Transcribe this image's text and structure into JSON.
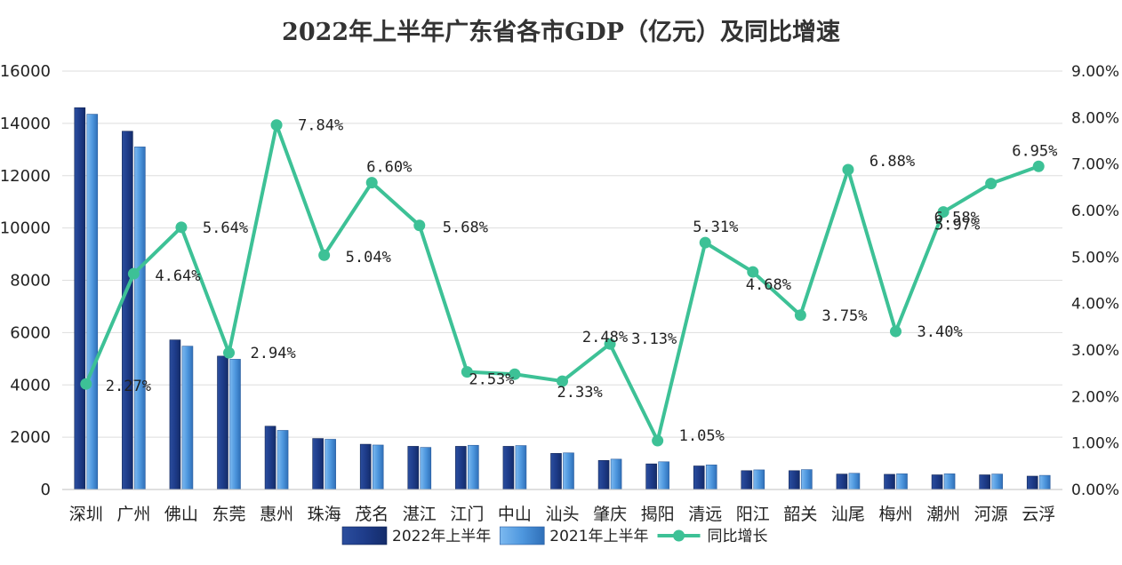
{
  "chart_data": {
    "type": "bar",
    "title": "2022年上半年广东省各市GDP（亿元）及同比增速",
    "categories": [
      "深圳",
      "广州",
      "佛山",
      "东莞",
      "惠州",
      "珠海",
      "茂名",
      "湛江",
      "江门",
      "中山",
      "汕头",
      "肇庆",
      "揭阳",
      "清远",
      "阳江",
      "韶关",
      "汕尾",
      "梅州",
      "潮州",
      "河源",
      "云浮"
    ],
    "series": [
      {
        "name": "2022年上半年",
        "kind": "bar",
        "axis": "left",
        "color": "#1F3F8F",
        "values": [
          14600,
          13700,
          5720,
          5100,
          2420,
          1950,
          1730,
          1650,
          1650,
          1650,
          1380,
          1110,
          980,
          900,
          720,
          720,
          590,
          580,
          560,
          560,
          510
        ]
      },
      {
        "name": "2021年上半年",
        "kind": "bar",
        "axis": "left",
        "color": "#5BA3E6",
        "values": [
          14350,
          13100,
          5480,
          4980,
          2260,
          1920,
          1700,
          1610,
          1690,
          1680,
          1400,
          1160,
          1060,
          940,
          750,
          760,
          620,
          600,
          600,
          590,
          540
        ]
      },
      {
        "name": "同比增长",
        "kind": "line",
        "axis": "right",
        "color": "#3DC196",
        "values": [
          2.27,
          4.64,
          5.64,
          2.94,
          7.84,
          5.04,
          6.6,
          5.68,
          2.53,
          2.48,
          2.33,
          3.13,
          1.05,
          5.31,
          4.68,
          3.75,
          6.88,
          3.4,
          5.97,
          6.58,
          6.95
        ],
        "labels": [
          "2.27%",
          "4.64%",
          "5.64%",
          "2.94%",
          "7.84%",
          "5.04%",
          "6.60%",
          "5.68%",
          "2.53%",
          "2.48%",
          "2.33%",
          "3.13%",
          "1.05%",
          "5.31%",
          "4.68%",
          "3.75%",
          "6.88%",
          "3.40%",
          "5.97%",
          "6.58%",
          "6.95%"
        ]
      }
    ],
    "y_left": {
      "min": 0,
      "max": 16000,
      "ticks": [
        "0",
        "2000",
        "4000",
        "6000",
        "8000",
        "10000",
        "12000",
        "14000",
        "16000"
      ]
    },
    "y_right": {
      "min": 0,
      "max": 9,
      "ticks": [
        "0.00%",
        "1.00%",
        "2.00%",
        "3.00%",
        "4.00%",
        "5.00%",
        "6.00%",
        "7.00%",
        "8.00%",
        "9.00%"
      ]
    },
    "grid": true,
    "legend_position": "bottom"
  }
}
